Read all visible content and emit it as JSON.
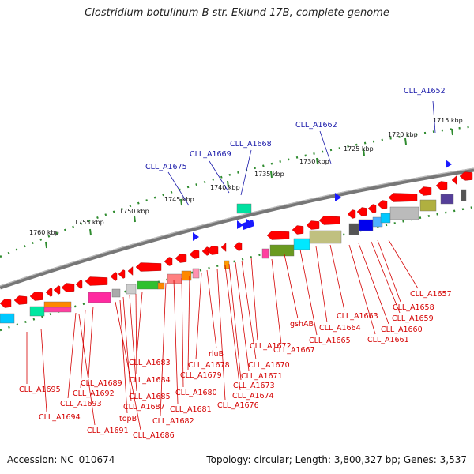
{
  "title": "Clostridium botulinum B str. Eklund 17B, complete genome",
  "footer": {
    "accession": "Accession: NC_010674",
    "summary": "Topology: circular; Length: 3,800,327 bp; Genes: 3,537"
  },
  "colors": {
    "gene_forward": "#ff0000",
    "gene_reverse_label": "#1a1aaa",
    "backbone": "#777777",
    "tick": "#2e8b2e"
  },
  "ticks": [
    {
      "label": "1760 kbp"
    },
    {
      "label": "1755 kbp"
    },
    {
      "label": "1750 kbp"
    },
    {
      "label": "1745 kbp"
    },
    {
      "label": "1740 kbp"
    },
    {
      "label": "1735 kbp"
    },
    {
      "label": "1730 kbp"
    },
    {
      "label": "1725 kbp"
    },
    {
      "label": "1720 kbp"
    },
    {
      "label": "1715 kbp"
    }
  ],
  "blue_labels": [
    "CLL_A1652",
    "CLL_A1662",
    "CLL_A1668",
    "CLL_A1669",
    "CLL_A1675"
  ],
  "red_labels": [
    "CLL_A1657",
    "CLL_A1658",
    "CLL_A1659",
    "CLL_A1660",
    "CLL_A1661",
    "CLL_A1663",
    "CLL_A1664",
    "CLL_A1665",
    "gshAB",
    "CLL_A1667",
    "CLL_A1672",
    "CLL_A1670",
    "CLL_A1671",
    "CLL_A1673",
    "CLL_A1674",
    "CLL_A1676",
    "rluB",
    "CLL_A1678",
    "CLL_A1679",
    "CLL_A1680",
    "CLL_A1681",
    "CLL_A1682",
    "CLL_A1683",
    "CLL_A1684",
    "CLL_A1685",
    "CLL_A1687",
    "topB",
    "CLL_A1686",
    "CLL_A1689",
    "CLL_A1692",
    "CLL_A1693",
    "CLL_A1691",
    "CLL_A1695",
    "CLL_A1694"
  ]
}
